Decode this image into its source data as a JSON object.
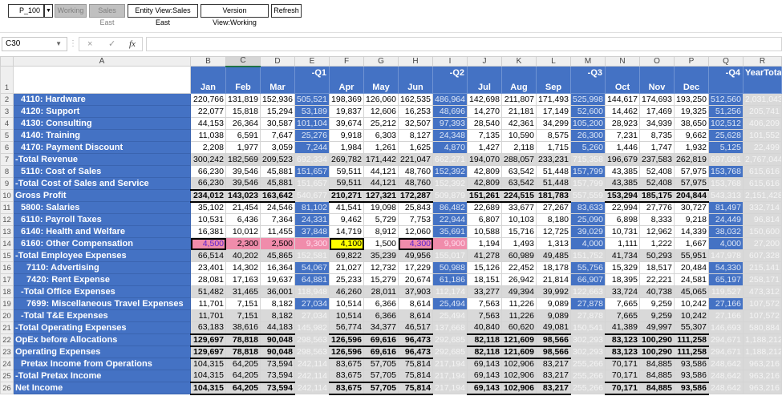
{
  "toolbar": {
    "scenario_value": "P_100",
    "version_label": "Working",
    "entity_label": "Sales East",
    "entity_view_button": "Entity View:Sales East",
    "version_view_button": "Version View:Working",
    "refresh_button": "Refresh"
  },
  "formula_bar": {
    "name_box": "C30",
    "cancel_icon": "×",
    "enter_icon": "✓",
    "fx_label": "fx",
    "formula": ""
  },
  "selected_column": "C",
  "column_letters": [
    "A",
    "B",
    "C",
    "D",
    "E",
    "F",
    "G",
    "H",
    "I",
    "J",
    "K",
    "L",
    "M",
    "N",
    "O",
    "P",
    "Q",
    "R"
  ],
  "header_row": {
    "row_number": "1",
    "periods": [
      "Jan",
      "Feb",
      "Mar",
      "-Q1",
      "Apr",
      "May",
      "Jun",
      "-Q2",
      "Jul",
      "Aug",
      "Sep",
      "-Q3",
      "Oct",
      "Nov",
      "Dec",
      "-Q4",
      "YearTotal"
    ]
  },
  "colors": {
    "header_blue": "#4472C4",
    "total_grey": "#D9D9D9",
    "edited_pink": "#F08CAB",
    "edited_yellow": "#FFFF00"
  },
  "rows": [
    {
      "n": "2",
      "label": "4110: Hardware",
      "indent": 1,
      "type": "detail",
      "values": [
        "220,766",
        "131,819",
        "152,936",
        "505,521",
        "198,369",
        "126,060",
        "162,535",
        "486,964",
        "142,698",
        "211,807",
        "171,493",
        "525,998",
        "144,617",
        "174,693",
        "193,250",
        "512,560",
        "2,031,043"
      ]
    },
    {
      "n": "3",
      "label": "4120: Support",
      "indent": 1,
      "type": "detail",
      "values": [
        "22,077",
        "15,818",
        "15,294",
        "53,189",
        "19,837",
        "12,606",
        "16,253",
        "48,696",
        "14,270",
        "21,181",
        "17,149",
        "52,600",
        "14,462",
        "17,469",
        "19,325",
        "51,256",
        "205,741"
      ]
    },
    {
      "n": "4",
      "label": "4130: Consulting",
      "indent": 1,
      "type": "detail",
      "values": [
        "44,153",
        "26,364",
        "30,587",
        "101,104",
        "39,674",
        "25,212",
        "32,507",
        "97,393",
        "28,540",
        "42,361",
        "34,299",
        "105,200",
        "28,923",
        "34,939",
        "38,650",
        "102,512",
        "406,209"
      ]
    },
    {
      "n": "5",
      "label": "4140: Training",
      "indent": 1,
      "type": "detail",
      "values": [
        "11,038",
        "6,591",
        "7,647",
        "25,276",
        "9,918",
        "6,303",
        "8,127",
        "24,348",
        "7,135",
        "10,590",
        "8,575",
        "26,300",
        "7,231",
        "8,735",
        "9,662",
        "25,628",
        "101,552"
      ]
    },
    {
      "n": "6",
      "label": "4170: Payment Discount",
      "indent": 1,
      "type": "detail",
      "values": [
        "2,208",
        "1,977",
        "3,059",
        "7,244",
        "1,984",
        "1,261",
        "1,625",
        "4,870",
        "1,427",
        "2,118",
        "1,715",
        "5,260",
        "1,446",
        "1,747",
        "1,932",
        "5,125",
        "22,499"
      ]
    },
    {
      "n": "7",
      "label": "-Total Revenue",
      "indent": 0,
      "type": "total",
      "values": [
        "300,242",
        "182,569",
        "209,523",
        "692,334",
        "269,782",
        "171,442",
        "221,047",
        "662,271",
        "194,070",
        "288,057",
        "233,231",
        "715,358",
        "196,679",
        "237,583",
        "262,819",
        "697,081",
        "2,767,044"
      ]
    },
    {
      "n": "8",
      "label": "5110: Cost of Sales",
      "indent": 1,
      "type": "detail",
      "values": [
        "66,230",
        "39,546",
        "45,881",
        "151,657",
        "59,511",
        "44,121",
        "48,760",
        "152,392",
        "42,809",
        "63,542",
        "51,448",
        "157,799",
        "43,385",
        "52,408",
        "57,975",
        "153,768",
        "615,616"
      ]
    },
    {
      "n": "9",
      "label": "-Total Cost of Sales and Service",
      "indent": 0,
      "type": "total",
      "values": [
        "66,230",
        "39,546",
        "45,881",
        "151,657",
        "59,511",
        "44,121",
        "48,760",
        "152,392",
        "42,809",
        "63,542",
        "51,448",
        "157,799",
        "43,385",
        "52,408",
        "57,975",
        "153,768",
        "615,616"
      ]
    },
    {
      "n": "10",
      "label": "Gross Profit",
      "indent": 0,
      "type": "bold",
      "values": [
        "234,012",
        "143,023",
        "163,642",
        "540,677",
        "210,271",
        "127,321",
        "172,287",
        "509,879",
        "151,261",
        "224,515",
        "181,783",
        "557,559",
        "153,294",
        "185,175",
        "204,844",
        "543,313",
        "2,151,428"
      ]
    },
    {
      "n": "11",
      "label": "5800: Salaries",
      "indent": 1,
      "type": "detail",
      "values": [
        "35,102",
        "21,454",
        "24,546",
        "81,102",
        "41,541",
        "19,098",
        "25,843",
        "86,482",
        "22,689",
        "33,677",
        "27,267",
        "83,633",
        "22,994",
        "27,776",
        "30,727",
        "81,497",
        "332,714"
      ]
    },
    {
      "n": "12",
      "label": "6110: Payroll Taxes",
      "indent": 1,
      "type": "detail",
      "values": [
        "10,531",
        "6,436",
        "7,364",
        "24,331",
        "9,462",
        "5,729",
        "7,753",
        "22,944",
        "6,807",
        "10,103",
        "8,180",
        "25,090",
        "6,898",
        "8,333",
        "9,218",
        "24,449",
        "96,814"
      ]
    },
    {
      "n": "13",
      "label": "6140: Health and Welfare",
      "indent": 1,
      "type": "detail",
      "values": [
        "16,381",
        "10,012",
        "11,455",
        "37,848",
        "14,719",
        "8,912",
        "12,060",
        "35,691",
        "10,588",
        "15,716",
        "12,725",
        "39,029",
        "10,731",
        "12,962",
        "14,339",
        "38,032",
        "150,600"
      ]
    },
    {
      "n": "14",
      "label": "6160: Other Compensation",
      "indent": 1,
      "type": "detail",
      "values": [
        "4,500",
        "2,300",
        "2,500",
        "9,300",
        "4,100",
        "1,500",
        "4,300",
        "9,900",
        "1,194",
        "1,493",
        "1,313",
        "4,000",
        "1,111",
        "1,222",
        "1,667",
        "4,000",
        "27,200"
      ],
      "cell_states": {
        "0": "pink boxed purple",
        "1": "pink",
        "2": "pink",
        "3": "pinkq",
        "4": "yellow boxed",
        "6": "pink boxed purple",
        "7": "pinkq"
      }
    },
    {
      "n": "15",
      "label": "-Total Employee Expenses",
      "indent": 0,
      "type": "total",
      "values": [
        "66,514",
        "40,202",
        "45,865",
        "152,581",
        "69,822",
        "35,239",
        "49,956",
        "155,017",
        "41,278",
        "60,989",
        "49,485",
        "151,752",
        "41,734",
        "50,293",
        "55,951",
        "147,978",
        "607,328"
      ]
    },
    {
      "n": "16",
      "label": "7110: Advertising",
      "indent": 2,
      "type": "detail",
      "values": [
        "23,401",
        "14,302",
        "16,364",
        "54,067",
        "21,027",
        "12,732",
        "17,229",
        "50,988",
        "15,126",
        "22,452",
        "18,178",
        "55,756",
        "15,329",
        "18,517",
        "20,484",
        "54,330",
        "215,141"
      ]
    },
    {
      "n": "17",
      "label": "7420: Rent Expense",
      "indent": 2,
      "type": "detail",
      "values": [
        "28,081",
        "17,163",
        "19,637",
        "64,881",
        "25,233",
        "15,279",
        "20,674",
        "61,186",
        "18,151",
        "26,942",
        "21,814",
        "66,907",
        "18,395",
        "22,221",
        "24,581",
        "65,197",
        "258,171"
      ]
    },
    {
      "n": "18",
      "label": "-Total Office Expenses",
      "indent": 1,
      "type": "total",
      "values": [
        "51,482",
        "31,465",
        "36,001",
        "118,948",
        "46,260",
        "28,011",
        "37,903",
        "112,174",
        "33,277",
        "49,394",
        "39,992",
        "122,663",
        "33,724",
        "40,738",
        "45,065",
        "119,527",
        "473,312"
      ]
    },
    {
      "n": "19",
      "label": "7699: Miscellaneous Travel Expenses",
      "indent": 2,
      "type": "detail",
      "values": [
        "11,701",
        "7,151",
        "8,182",
        "27,034",
        "10,514",
        "6,366",
        "8,614",
        "25,494",
        "7,563",
        "11,226",
        "9,089",
        "27,878",
        "7,665",
        "9,259",
        "10,242",
        "27,166",
        "107,572"
      ]
    },
    {
      "n": "20",
      "label": "-Total T&E Expenses",
      "indent": 1,
      "type": "total",
      "values": [
        "11,701",
        "7,151",
        "8,182",
        "27,034",
        "10,514",
        "6,366",
        "8,614",
        "25,494",
        "7,563",
        "11,226",
        "9,089",
        "27,878",
        "7,665",
        "9,259",
        "10,242",
        "27,166",
        "107,572"
      ]
    },
    {
      "n": "21",
      "label": "-Total Operating Expenses",
      "indent": 0,
      "type": "total",
      "values": [
        "63,183",
        "38,616",
        "44,183",
        "145,982",
        "56,774",
        "34,377",
        "46,517",
        "137,668",
        "40,840",
        "60,620",
        "49,081",
        "150,541",
        "41,389",
        "49,997",
        "55,307",
        "146,693",
        "580,884"
      ]
    },
    {
      "n": "22",
      "label": "OpEx before Allocations",
      "indent": 0,
      "type": "bold",
      "values": [
        "129,697",
        "78,818",
        "90,048",
        "298,563",
        "126,596",
        "69,616",
        "96,473",
        "292,685",
        "82,118",
        "121,609",
        "98,566",
        "302,293",
        "83,123",
        "100,290",
        "111,258",
        "294,671",
        "1,188,212"
      ]
    },
    {
      "n": "23",
      "label": "Operating Expenses",
      "indent": 0,
      "type": "bold",
      "values": [
        "129,697",
        "78,818",
        "90,048",
        "298,563",
        "126,596",
        "69,616",
        "96,473",
        "292,685",
        "82,118",
        "121,609",
        "98,566",
        "302,293",
        "83,123",
        "100,290",
        "111,258",
        "294,671",
        "1,188,212"
      ]
    },
    {
      "n": "24",
      "label": "Pretax Income from Operations",
      "indent": 1,
      "type": "total",
      "values": [
        "104,315",
        "64,205",
        "73,594",
        "242,114",
        "83,675",
        "57,705",
        "75,814",
        "217,194",
        "69,143",
        "102,906",
        "83,217",
        "255,266",
        "70,171",
        "84,885",
        "93,586",
        "248,642",
        "963,216"
      ]
    },
    {
      "n": "25",
      "label": "-Total Pretax Income",
      "indent": 0,
      "type": "total",
      "values": [
        "104,315",
        "64,205",
        "73,594",
        "242,114",
        "83,675",
        "57,705",
        "75,814",
        "217,194",
        "69,143",
        "102,906",
        "83,217",
        "255,266",
        "70,171",
        "84,885",
        "93,586",
        "248,642",
        "963,216"
      ]
    },
    {
      "n": "26",
      "label": "Net Income",
      "indent": 0,
      "type": "bold",
      "values": [
        "104,315",
        "64,205",
        "73,594",
        "242,114",
        "83,675",
        "57,705",
        "75,814",
        "217,194",
        "69,143",
        "102,906",
        "83,217",
        "255,266",
        "70,171",
        "84,885",
        "93,586",
        "248,642",
        "963,216"
      ]
    }
  ]
}
